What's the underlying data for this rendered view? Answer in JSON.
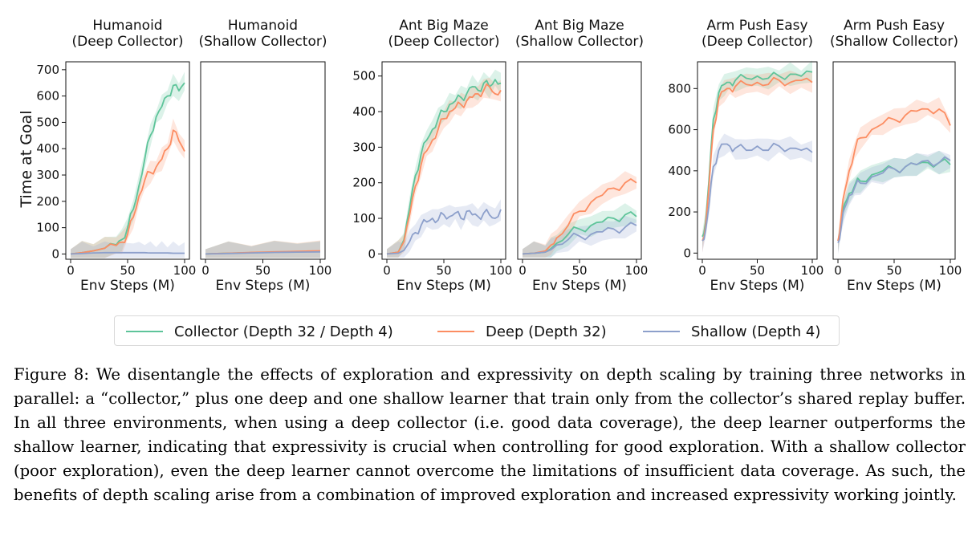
{
  "colors": {
    "collector": "#5ec49a",
    "deep": "#fc8d62",
    "shallow": "#8da0cb"
  },
  "legend": [
    {
      "key": "collector",
      "label": "Collector (Depth 32 / Depth 4)"
    },
    {
      "key": "deep",
      "label": "Deep (Depth 32)"
    },
    {
      "key": "shallow",
      "label": "Shallow (Depth 4)"
    }
  ],
  "caption": {
    "label": "Figure 8:",
    "text": "We disentangle the effects of exploration and expressivity on depth scaling by training three networks in parallel: a “collector,” plus one deep and one shallow learner that train only from the collector’s shared replay buffer. In all three environments, when using a deep collector (i.e. good data coverage), the deep learner outperforms the shallow learner, indicating that expressivity is crucial when controlling for good exploration. With a shallow collector (poor exploration), even the deep learner cannot overcome the limitations of insufficient data coverage. As such, the benefits of depth scaling arise from a combination of improved exploration and increased expressivity working jointly."
  },
  "chart_data": [
    {
      "type": "line",
      "title": [
        "Humanoid",
        "(Deep Collector)"
      ],
      "xlabel": "Env Steps (M)",
      "ylabel": "Time at Goal",
      "xlim": [
        0,
        100
      ],
      "ylim": [
        -20,
        730
      ],
      "xticks": [
        0,
        50,
        100
      ],
      "yticks": [
        0,
        100,
        200,
        300,
        400,
        500,
        600,
        700
      ],
      "x": [
        0,
        10,
        20,
        30,
        40,
        45,
        50,
        55,
        60,
        65,
        70,
        75,
        80,
        85,
        90,
        95,
        100
      ],
      "series": [
        {
          "name": "Collector (Depth 32 / Depth 4)",
          "values": [
            0,
            5,
            12,
            22,
            35,
            55,
            100,
            170,
            260,
            360,
            450,
            520,
            560,
            600,
            640,
            620,
            650
          ]
        },
        {
          "name": "Deep (Depth 32)",
          "values": [
            0,
            5,
            12,
            22,
            32,
            45,
            75,
            140,
            220,
            280,
            310,
            330,
            360,
            400,
            470,
            430,
            390
          ]
        },
        {
          "name": "Shallow (Depth 4)",
          "values": [
            0,
            2,
            4,
            5,
            5,
            5,
            5,
            5,
            5,
            5,
            4,
            4,
            4,
            4,
            3,
            3,
            3
          ]
        }
      ]
    },
    {
      "type": "line",
      "title": [
        "Humanoid",
        "(Shallow Collector)"
      ],
      "xlabel": "Env Steps (M)",
      "ylabel": "",
      "xlim": [
        0,
        100
      ],
      "ylim": [
        -20,
        730
      ],
      "xticks": [
        0,
        50,
        100
      ],
      "yticks": [],
      "x": [
        0,
        20,
        40,
        60,
        80,
        100
      ],
      "series": [
        {
          "name": "Collector (Depth 32 / Depth 4)",
          "values": [
            0,
            3,
            5,
            7,
            8,
            10
          ]
        },
        {
          "name": "Deep (Depth 32)",
          "values": [
            0,
            3,
            6,
            8,
            10,
            12
          ]
        },
        {
          "name": "Shallow (Depth 4)",
          "values": [
            0,
            2,
            4,
            6,
            7,
            8
          ]
        }
      ]
    },
    {
      "type": "line",
      "title": [
        "Ant Big Maze",
        "(Deep Collector)"
      ],
      "xlabel": "Env Steps (M)",
      "ylabel": "",
      "xlim": [
        0,
        100
      ],
      "ylim": [
        -15,
        540
      ],
      "xticks": [
        0,
        50,
        100
      ],
      "yticks": [
        0,
        100,
        200,
        300,
        400,
        500
      ],
      "x": [
        0,
        10,
        15,
        20,
        25,
        30,
        35,
        40,
        45,
        50,
        55,
        60,
        65,
        70,
        75,
        80,
        85,
        90,
        95,
        100
      ],
      "series": [
        {
          "name": "Collector (Depth 32 / Depth 4)",
          "values": [
            0,
            5,
            40,
            130,
            220,
            280,
            320,
            350,
            380,
            400,
            420,
            430,
            440,
            450,
            470,
            460,
            480,
            470,
            490,
            480
          ]
        },
        {
          "name": "Deep (Depth 32)",
          "values": [
            0,
            5,
            35,
            110,
            190,
            250,
            290,
            320,
            350,
            380,
            400,
            410,
            420,
            430,
            440,
            450,
            460,
            470,
            450,
            460
          ]
        },
        {
          "name": "Shallow (Depth 4)",
          "values": [
            0,
            2,
            10,
            35,
            60,
            80,
            90,
            100,
            95,
            110,
            105,
            115,
            100,
            120,
            110,
            105,
            115,
            110,
            100,
            125
          ]
        }
      ]
    },
    {
      "type": "line",
      "title": [
        "Ant Big Maze",
        "(Shallow Collector)"
      ],
      "xlabel": "Env Steps (M)",
      "ylabel": "",
      "xlim": [
        0,
        100
      ],
      "ylim": [
        -15,
        540
      ],
      "xticks": [
        0,
        50,
        100
      ],
      "yticks": [],
      "x": [
        0,
        10,
        20,
        25,
        30,
        40,
        50,
        60,
        70,
        80,
        90,
        100
      ],
      "series": [
        {
          "name": "Collector (Depth 32 / Depth 4)",
          "values": [
            0,
            2,
            5,
            15,
            30,
            55,
            70,
            80,
            90,
            100,
            110,
            105
          ]
        },
        {
          "name": "Deep (Depth 32)",
          "values": [
            0,
            2,
            8,
            25,
            45,
            80,
            120,
            145,
            165,
            185,
            200,
            200
          ]
        },
        {
          "name": "Shallow (Depth 4)",
          "values": [
            0,
            2,
            5,
            12,
            25,
            40,
            50,
            55,
            62,
            70,
            75,
            80
          ]
        }
      ]
    },
    {
      "type": "line",
      "title": [
        "Arm Push Easy",
        "(Deep Collector)"
      ],
      "xlabel": "Env Steps (M)",
      "ylabel": "",
      "xlim": [
        0,
        100
      ],
      "ylim": [
        -30,
        930
      ],
      "xticks": [
        0,
        50,
        100
      ],
      "yticks": [
        0,
        200,
        400,
        600,
        800
      ],
      "x": [
        0,
        3,
        6,
        10,
        15,
        20,
        25,
        30,
        40,
        50,
        60,
        70,
        80,
        90,
        100
      ],
      "series": [
        {
          "name": "Collector (Depth 32 / Depth 4)",
          "values": [
            80,
            150,
            350,
            650,
            780,
            820,
            830,
            840,
            850,
            860,
            850,
            860,
            870,
            860,
            880
          ]
        },
        {
          "name": "Deep (Depth 32)",
          "values": [
            60,
            130,
            320,
            600,
            750,
            790,
            800,
            810,
            820,
            830,
            820,
            840,
            830,
            840,
            830
          ]
        },
        {
          "name": "Shallow (Depth 4)",
          "values": [
            60,
            110,
            230,
            420,
            500,
            530,
            520,
            510,
            500,
            520,
            500,
            520,
            510,
            500,
            490
          ]
        }
      ]
    },
    {
      "type": "line",
      "title": [
        "Arm Push Easy",
        "(Shallow Collector)"
      ],
      "xlabel": "Env Steps (M)",
      "ylabel": "",
      "xlim": [
        0,
        100
      ],
      "ylim": [
        -30,
        930
      ],
      "xticks": [
        0,
        50,
        100
      ],
      "yticks": [],
      "x": [
        0,
        3,
        6,
        10,
        15,
        20,
        30,
        40,
        50,
        60,
        70,
        80,
        90,
        100
      ],
      "series": [
        {
          "name": "Collector (Depth 32 / Depth 4)",
          "values": [
            60,
            150,
            240,
            290,
            330,
            350,
            380,
            400,
            410,
            420,
            430,
            440,
            440,
            430
          ]
        },
        {
          "name": "Deep (Depth 32)",
          "values": [
            60,
            180,
            300,
            400,
            500,
            560,
            600,
            630,
            650,
            670,
            690,
            700,
            700,
            620
          ]
        },
        {
          "name": "Shallow (Depth 4)",
          "values": [
            50,
            130,
            220,
            280,
            320,
            340,
            370,
            390,
            410,
            420,
            430,
            450,
            440,
            450
          ]
        }
      ]
    }
  ]
}
